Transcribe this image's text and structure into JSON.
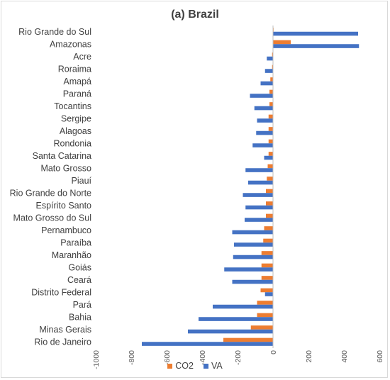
{
  "chart_data": {
    "type": "bar",
    "orientation": "horizontal",
    "title": "(a) Brazil",
    "categories": [
      "Rio Grande do Sul",
      "Amazonas",
      "Acre",
      "Roraima",
      "Amapá",
      "Paraná",
      "Tocantins",
      "Sergipe",
      "Alagoas",
      "Rondonia",
      "Santa Catarina",
      "Mato Grosso",
      "Piauí",
      "Rio Grande do Norte",
      "Espírito Santo",
      "Mato Grosso do Sul",
      "Pernambuco",
      "Paraíba",
      "Maranhão",
      "Goiás",
      "Ceará",
      "Distrito Federal",
      "Pará",
      "Bahia",
      "Minas Gerais",
      "Rio de Janeiro"
    ],
    "series": [
      {
        "name": "CO2",
        "color": "#ed7d31",
        "values": [
          0,
          100,
          -5,
          -5,
          -15,
          -20,
          -20,
          -25,
          -25,
          -25,
          -25,
          -30,
          -35,
          -40,
          -40,
          -40,
          -50,
          -55,
          -65,
          -65,
          -65,
          -70,
          -90,
          -90,
          -125,
          -280
        ]
      },
      {
        "name": "VA",
        "color": "#4472c4",
        "values": [
          480,
          485,
          -35,
          -45,
          -70,
          -130,
          -105,
          -90,
          -95,
          -115,
          -50,
          -155,
          -140,
          -170,
          -155,
          -160,
          -230,
          -220,
          -225,
          -275,
          -230,
          -45,
          -340,
          -420,
          -480,
          -740
        ]
      }
    ],
    "xlim": [
      -1000,
      600
    ],
    "xticks": [
      "-1000",
      "-800",
      "-600",
      "-400",
      "-200",
      "0",
      "200",
      "400",
      "600"
    ],
    "legend_position": "bottom",
    "grid": false
  }
}
